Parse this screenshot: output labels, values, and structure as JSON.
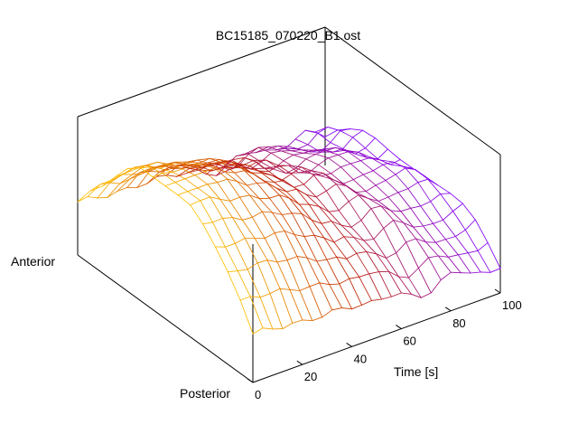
{
  "chart_data": {
    "type": "surface",
    "title": "BC15185_070220_B1.ost",
    "xlabel": "Time [s]",
    "y_axis_end_labels": {
      "far": "Anterior",
      "near": "Posterior"
    },
    "x_ticks": [
      "0",
      "20",
      "40",
      "60",
      "80",
      "100"
    ],
    "xlim": [
      0,
      100
    ],
    "ylim": [
      0,
      1
    ],
    "zlim": [
      0,
      1
    ],
    "grid": false,
    "colors": {
      "early": "#ffc000",
      "middle": "#c02000",
      "late": "#8000ff",
      "frame": "#000000"
    },
    "surface": {
      "time_samples": [
        0,
        4,
        8,
        12,
        16,
        20,
        24,
        28,
        32,
        36,
        40,
        44,
        48,
        52,
        56,
        60,
        64,
        68,
        72,
        76,
        80,
        84,
        88,
        92,
        96,
        100
      ],
      "position_samples": [
        0,
        0.0714,
        0.1429,
        0.2143,
        0.2857,
        0.3571,
        0.4286,
        0.5,
        0.5714,
        0.6429,
        0.7143,
        0.7857,
        0.8571,
        0.9286,
        1
      ],
      "peak_intensity_over_time": [
        0.9,
        0.9,
        0.88,
        0.86,
        0.84,
        0.82,
        0.8,
        0.77,
        0.74,
        0.7,
        0.65,
        0.6,
        0.56,
        0.53,
        0.5,
        0.48,
        0.46,
        0.45,
        0.44,
        0.43,
        0.42,
        0.41,
        0.4,
        0.39,
        0.38,
        0.37
      ],
      "profile_shape": "arch, maximum near mid-position, falling toward both ends"
    }
  }
}
